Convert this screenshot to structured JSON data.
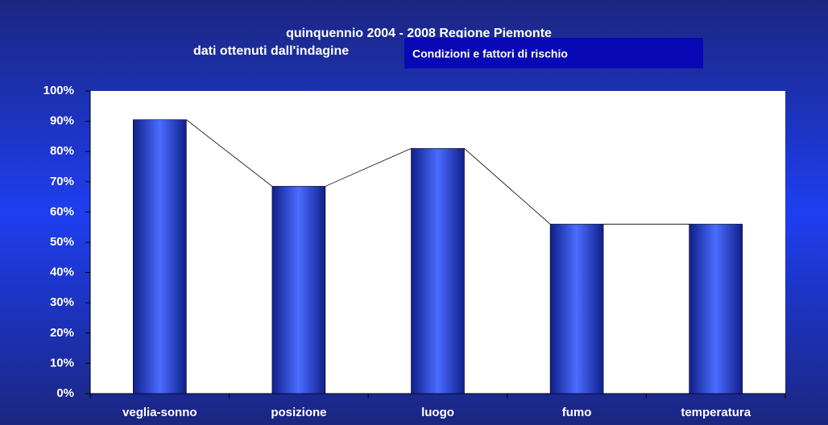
{
  "chart_data": {
    "type": "bar",
    "title": "quinquennio 2004 - 2008 Regione Piemonte",
    "subtitle": "dati ottenuti dall'indagine",
    "annotation": "Condizioni e fattori di rischio",
    "categories": [
      "veglia-sonno",
      "posizione",
      "luogo",
      "fumo",
      "temperatura"
    ],
    "values": [
      90.5,
      68.5,
      81,
      56,
      56
    ],
    "color": "#4a6cff",
    "ylim": [
      0,
      100
    ],
    "yticks": [
      {
        "value": 0,
        "label": "0%"
      },
      {
        "value": 10,
        "label": "10%"
      },
      {
        "value": 20,
        "label": "20%"
      },
      {
        "value": 30,
        "label": "30%"
      },
      {
        "value": 40,
        "label": "40%"
      },
      {
        "value": 50,
        "label": "50%"
      },
      {
        "value": 60,
        "label": "60%"
      },
      {
        "value": 70,
        "label": "70%"
      },
      {
        "value": 80,
        "label": "80%"
      },
      {
        "value": 90,
        "label": "90%"
      },
      {
        "value": 100,
        "label": "100%"
      }
    ]
  }
}
